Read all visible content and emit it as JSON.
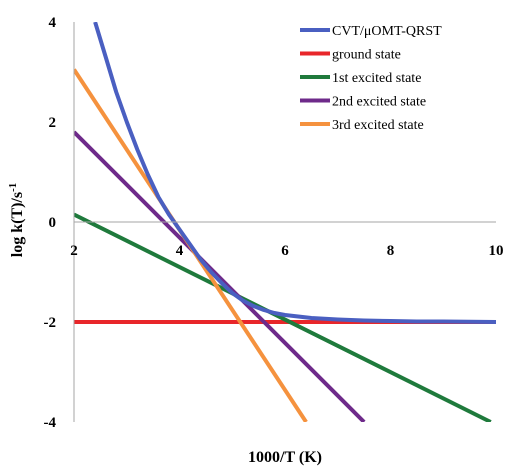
{
  "chart_data": {
    "type": "line",
    "title": "",
    "xlabel": "1000/T (K)",
    "ylabel": "log k(T)/s",
    "ylabel_superscript": "-1",
    "xlim": [
      2,
      10
    ],
    "ylim": [
      -4,
      4
    ],
    "x_ticks": [
      "2",
      "4",
      "6",
      "8",
      "10"
    ],
    "y_ticks": [
      "-4",
      "-2",
      "0",
      "2",
      "4"
    ],
    "x_tick_values": [
      2,
      4,
      6,
      8,
      10
    ],
    "y_tick_values": [
      -4,
      -2,
      0,
      2,
      4
    ],
    "grid": false,
    "legend_position": "top-right",
    "series": [
      {
        "name": "CVT/μOMT-QRST",
        "color": "#4a5fc1",
        "x": [
          2.4,
          2.6,
          2.8,
          3.0,
          3.2,
          3.4,
          3.6,
          3.8,
          4.0,
          4.2,
          4.4,
          4.6,
          4.8,
          5.0,
          5.2,
          5.4,
          5.6,
          5.8,
          6.0,
          6.5,
          7.0,
          7.5,
          8.0,
          8.5,
          9.0,
          10.0
        ],
        "y": [
          4.0,
          3.3,
          2.6,
          2.0,
          1.45,
          0.95,
          0.5,
          0.15,
          -0.15,
          -0.45,
          -0.75,
          -1.0,
          -1.22,
          -1.42,
          -1.57,
          -1.68,
          -1.76,
          -1.82,
          -1.86,
          -1.92,
          -1.95,
          -1.97,
          -1.98,
          -1.99,
          -1.99,
          -2.0
        ]
      },
      {
        "name": "ground state",
        "color": "#e8262a",
        "x": [
          2.0,
          10.0
        ],
        "y": [
          -2.0,
          -2.0
        ]
      },
      {
        "name": "1st excited state",
        "color": "#1f7a3c",
        "x": [
          2.0,
          9.9
        ],
        "y": [
          0.15,
          -4.0
        ]
      },
      {
        "name": "2nd excited state",
        "color": "#6e2a8a",
        "x": [
          2.0,
          7.5
        ],
        "y": [
          1.8,
          -4.0
        ]
      },
      {
        "name": "3rd excited state",
        "color": "#f5923e",
        "x": [
          2.0,
          6.4
        ],
        "y": [
          3.05,
          -4.0
        ]
      }
    ]
  }
}
